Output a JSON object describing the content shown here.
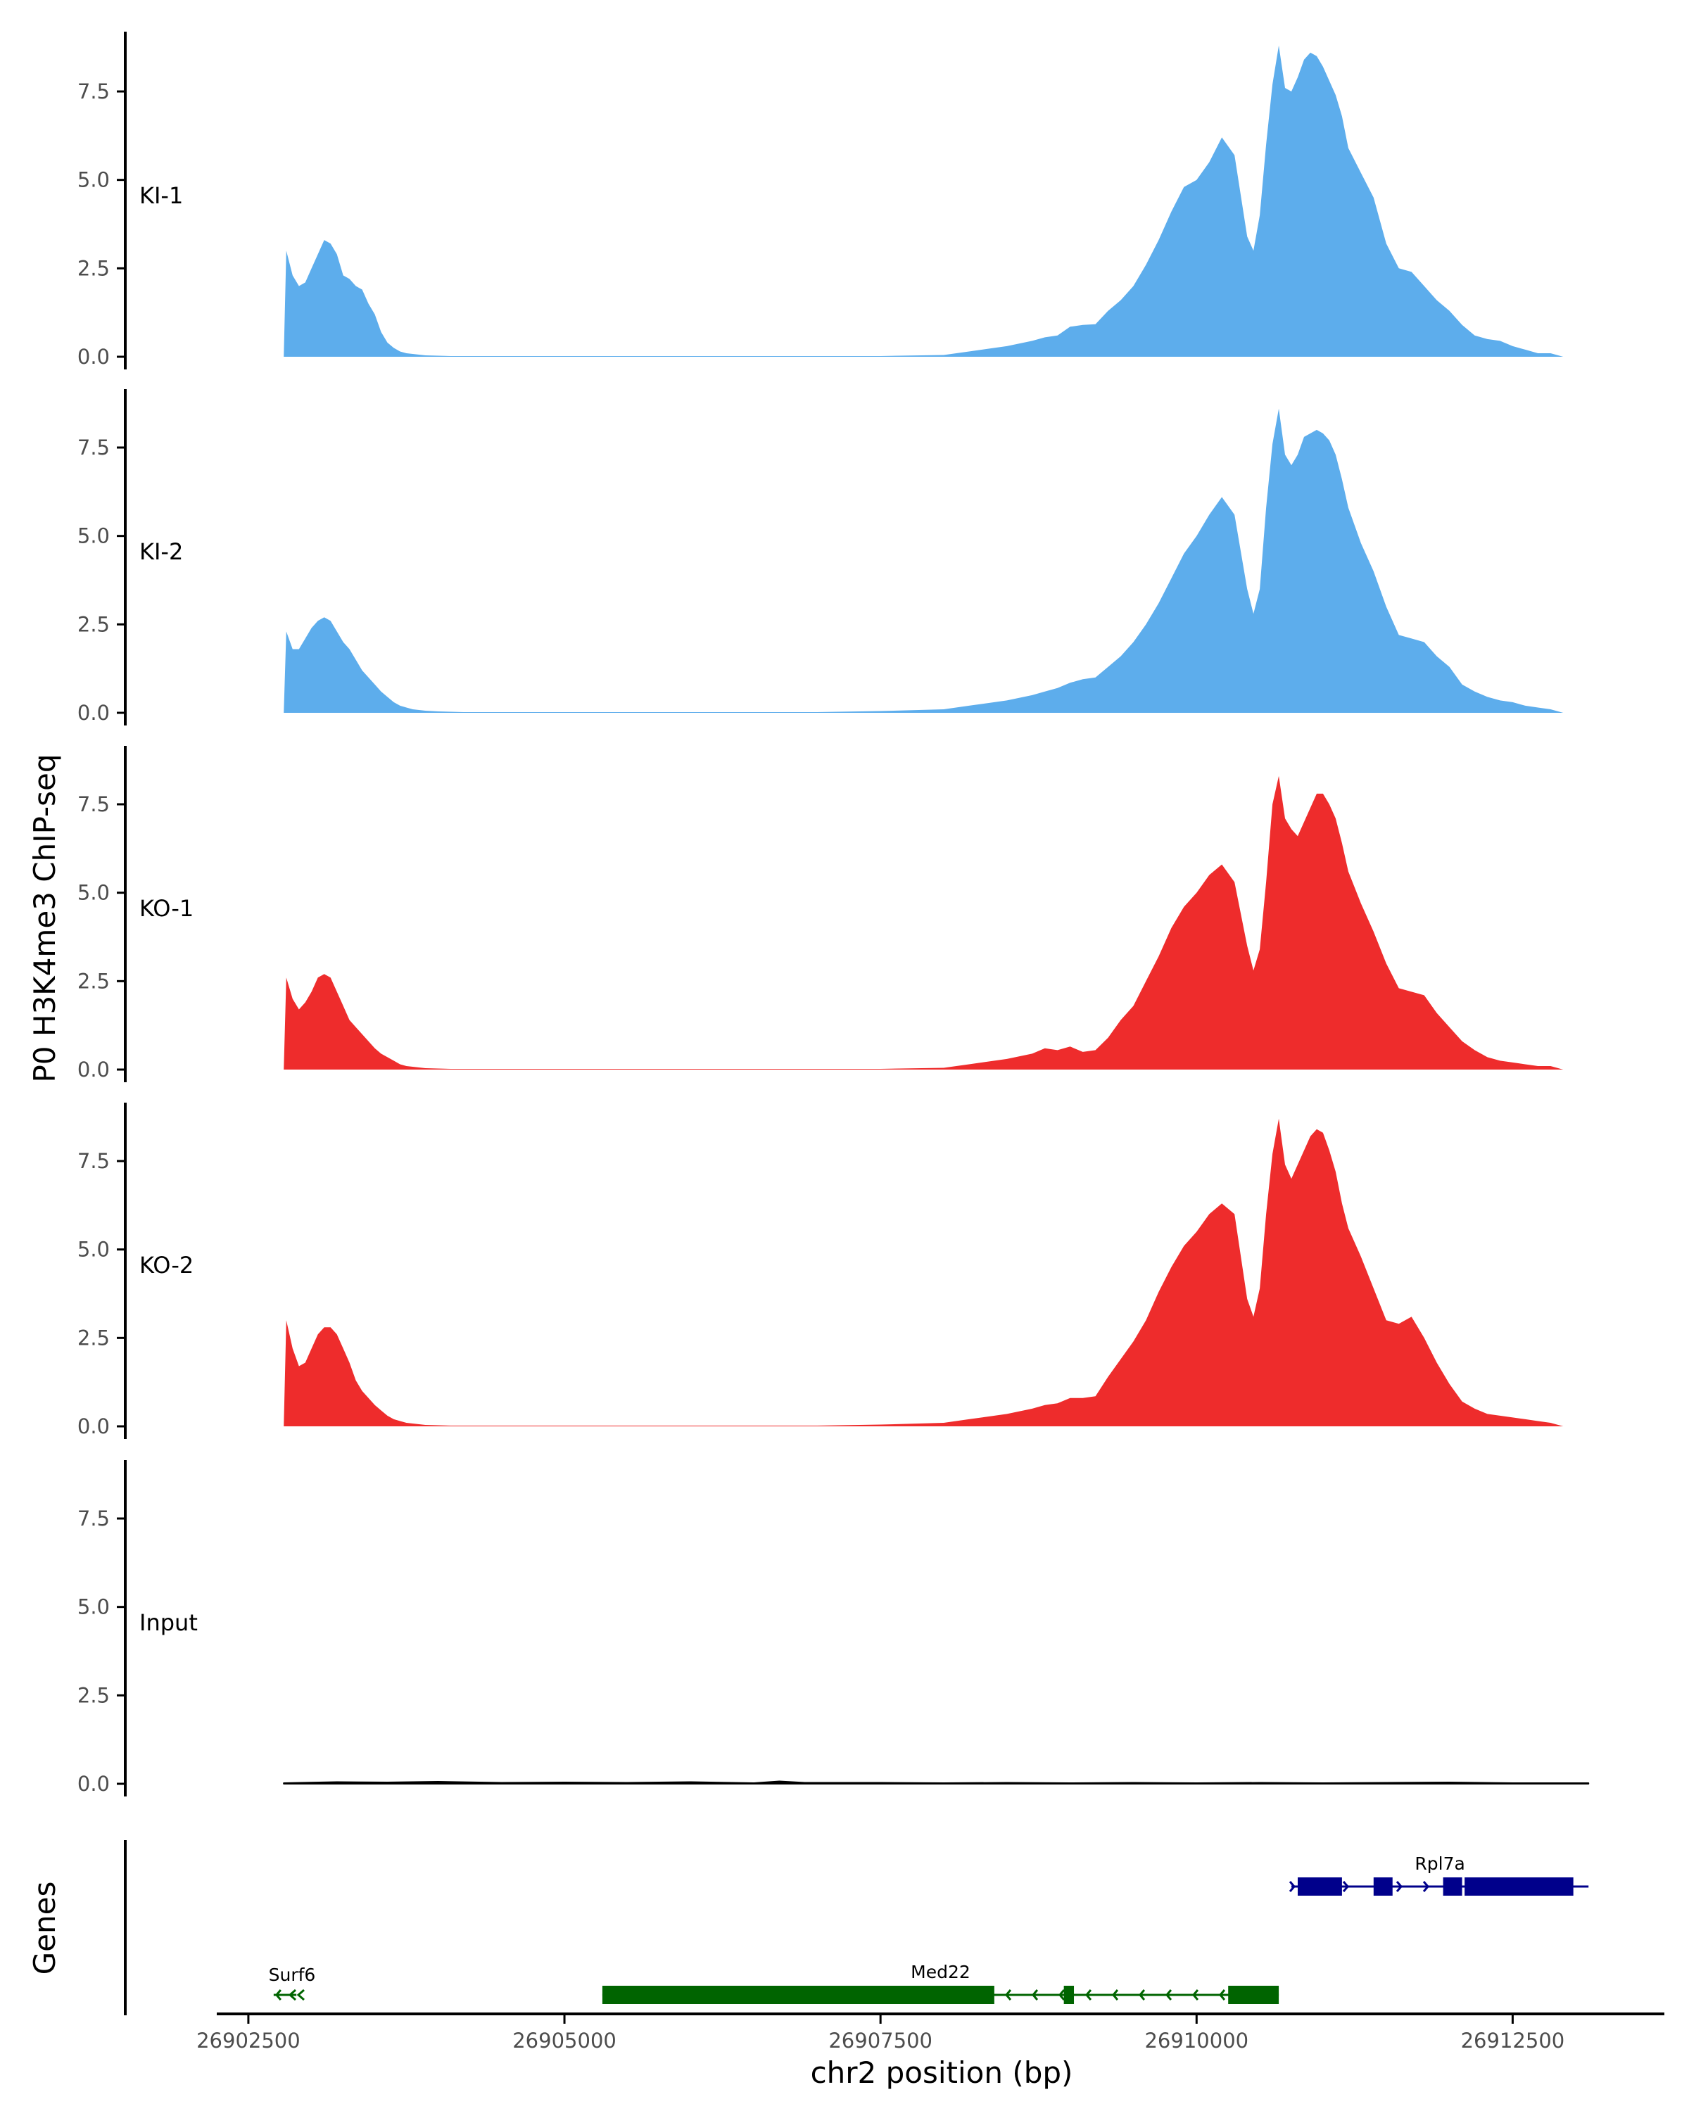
{
  "chart_data": {
    "type": "area",
    "chromosome": "chr2",
    "xlabel": "chr2 position (bp)",
    "ylabel": "P0 H3K4me3 ChIP-seq",
    "genes_label": "Genes",
    "xlim": [
      26902250,
      26913700
    ],
    "ylim": [
      0,
      9.2
    ],
    "x_ticks": [
      26902500,
      26905000,
      26907500,
      26910000,
      26912500
    ],
    "x_tick_labels": [
      "26902500",
      "26905000",
      "26907500",
      "26910000",
      "26912500"
    ],
    "y_ticks": [
      0,
      2.5,
      5,
      7.5
    ],
    "y_tick_labels": [
      "0.0",
      "2.5",
      "5.0",
      "7.5"
    ],
    "colors": {
      "KI": "#5DADEC",
      "KO": "#EE2C2C",
      "Input": "#000000",
      "plus_strand": "#00008B",
      "minus_strand": "#006400"
    },
    "series": [
      {
        "name": "KI-1",
        "color": "#5DADEC",
        "x": [
          26902780,
          26902800,
          26902850,
          26902900,
          26902950,
          26903000,
          26903050,
          26903100,
          26903150,
          26903200,
          26903250,
          26903300,
          26903350,
          26903400,
          26903450,
          26903500,
          26903550,
          26903600,
          26903650,
          26903700,
          26903750,
          26903800,
          26903850,
          26903900,
          26904000,
          26904100,
          26904200,
          26904300,
          26904500,
          26905000,
          26906000,
          26907000,
          26907500,
          26908000,
          26908200,
          26908500,
          26908700,
          26908800,
          26908900,
          26909000,
          26909100,
          26909200,
          26909300,
          26909400,
          26909500,
          26909600,
          26909700,
          26909800,
          26909900,
          26910000,
          26910100,
          26910200,
          26910300,
          26910400,
          26910450,
          26910500,
          26910550,
          26910600,
          26910650,
          26910700,
          26910750,
          26910800,
          26910850,
          26910900,
          26910950,
          26911000,
          26911050,
          26911100,
          26911150,
          26911200,
          26911300,
          26911400,
          26911500,
          26911600,
          26911700,
          26911800,
          26911900,
          26912000,
          26912100,
          26912200,
          26912300,
          26912400,
          26912500,
          26912600,
          26912700,
          26912800,
          26912900,
          26913000,
          26913100
        ],
        "values": [
          0,
          3.0,
          2.3,
          2.0,
          2.1,
          2.5,
          2.9,
          3.3,
          3.2,
          2.9,
          2.3,
          2.2,
          2.0,
          1.9,
          1.5,
          1.2,
          0.7,
          0.4,
          0.25,
          0.15,
          0.1,
          0.08,
          0.06,
          0.04,
          0.03,
          0.02,
          0.02,
          0.02,
          0.02,
          0.02,
          0.02,
          0.02,
          0.02,
          0.05,
          0.15,
          0.3,
          0.45,
          0.55,
          0.6,
          0.85,
          0.9,
          0.92,
          1.3,
          1.6,
          2.0,
          2.6,
          3.3,
          4.1,
          4.8,
          5.0,
          5.5,
          6.2,
          5.7,
          3.4,
          3.0,
          4.0,
          6.0,
          7.7,
          8.8,
          7.6,
          7.5,
          7.9,
          8.4,
          8.6,
          8.5,
          8.2,
          7.8,
          7.4,
          6.8,
          5.9,
          5.2,
          4.5,
          3.2,
          2.5,
          2.4,
          2.0,
          1.6,
          1.3,
          0.9,
          0.6,
          0.5,
          0.45,
          0.3,
          0.2,
          0.1,
          0.1,
          0,
          0,
          0
        ]
      },
      {
        "name": "KI-2",
        "color": "#5DADEC",
        "x": [
          26902780,
          26902800,
          26902850,
          26902900,
          26902950,
          26903000,
          26903050,
          26903100,
          26903150,
          26903200,
          26903250,
          26903300,
          26903350,
          26903400,
          26903450,
          26903500,
          26903550,
          26903600,
          26903650,
          26903700,
          26903750,
          26903800,
          26903850,
          26903900,
          26904000,
          26904100,
          26904200,
          26904300,
          26904500,
          26905000,
          26906000,
          26907000,
          26907500,
          26908000,
          26908200,
          26908500,
          26908700,
          26908800,
          26908900,
          26909000,
          26909100,
          26909200,
          26909300,
          26909400,
          26909500,
          26909600,
          26909700,
          26909800,
          26909900,
          26910000,
          26910100,
          26910200,
          26910300,
          26910400,
          26910450,
          26910500,
          26910550,
          26910600,
          26910650,
          26910700,
          26910750,
          26910800,
          26910850,
          26910900,
          26910950,
          26911000,
          26911050,
          26911100,
          26911150,
          26911200,
          26911300,
          26911400,
          26911500,
          26911600,
          26911700,
          26911800,
          26911900,
          26912000,
          26912100,
          26912200,
          26912300,
          26912400,
          26912500,
          26912600,
          26912700,
          26912800,
          26912900,
          26913000,
          26913100
        ],
        "values": [
          0,
          2.3,
          1.8,
          1.8,
          2.1,
          2.4,
          2.6,
          2.7,
          2.6,
          2.3,
          2.0,
          1.8,
          1.5,
          1.2,
          1.0,
          0.8,
          0.6,
          0.45,
          0.3,
          0.2,
          0.15,
          0.1,
          0.08,
          0.06,
          0.04,
          0.03,
          0.02,
          0.02,
          0.02,
          0.02,
          0.02,
          0.02,
          0.05,
          0.1,
          0.2,
          0.35,
          0.5,
          0.6,
          0.7,
          0.85,
          0.95,
          1.0,
          1.3,
          1.6,
          2.0,
          2.5,
          3.1,
          3.8,
          4.5,
          5.0,
          5.6,
          6.1,
          5.6,
          3.5,
          2.8,
          3.5,
          5.8,
          7.6,
          8.6,
          7.3,
          7.0,
          7.3,
          7.8,
          7.9,
          8.0,
          7.9,
          7.7,
          7.3,
          6.6,
          5.8,
          4.8,
          4.0,
          3.0,
          2.2,
          2.1,
          2.0,
          1.6,
          1.3,
          0.8,
          0.6,
          0.45,
          0.35,
          0.3,
          0.2,
          0.15,
          0.1,
          0,
          0,
          0
        ]
      },
      {
        "name": "KO-1",
        "color": "#EE2C2C",
        "x": [
          26902780,
          26902800,
          26902850,
          26902900,
          26902950,
          26903000,
          26903050,
          26903100,
          26903150,
          26903200,
          26903250,
          26903300,
          26903350,
          26903400,
          26903450,
          26903500,
          26903550,
          26903600,
          26903650,
          26903700,
          26903750,
          26903800,
          26903850,
          26903900,
          26904000,
          26904100,
          26904200,
          26904300,
          26904500,
          26905000,
          26906000,
          26907000,
          26907500,
          26908000,
          26908200,
          26908500,
          26908700,
          26908800,
          26908900,
          26909000,
          26909100,
          26909200,
          26909300,
          26909400,
          26909500,
          26909600,
          26909700,
          26909800,
          26909900,
          26910000,
          26910100,
          26910200,
          26910300,
          26910400,
          26910450,
          26910500,
          26910550,
          26910600,
          26910650,
          26910700,
          26910750,
          26910800,
          26910850,
          26910900,
          26910950,
          26911000,
          26911050,
          26911100,
          26911150,
          26911200,
          26911300,
          26911400,
          26911500,
          26911600,
          26911700,
          26911800,
          26911900,
          26912000,
          26912100,
          26912200,
          26912300,
          26912400,
          26912500,
          26912600,
          26912700,
          26912800,
          26912900,
          26913000,
          26913100
        ],
        "values": [
          0,
          2.6,
          2.0,
          1.7,
          1.9,
          2.2,
          2.6,
          2.7,
          2.6,
          2.2,
          1.8,
          1.4,
          1.2,
          1.0,
          0.8,
          0.6,
          0.45,
          0.35,
          0.25,
          0.15,
          0.1,
          0.08,
          0.06,
          0.04,
          0.03,
          0.02,
          0.02,
          0.02,
          0.02,
          0.02,
          0.02,
          0.02,
          0.02,
          0.05,
          0.15,
          0.3,
          0.45,
          0.6,
          0.55,
          0.65,
          0.5,
          0.55,
          0.9,
          1.4,
          1.8,
          2.5,
          3.2,
          4.0,
          4.6,
          5.0,
          5.5,
          5.8,
          5.3,
          3.5,
          2.8,
          3.4,
          5.3,
          7.5,
          8.3,
          7.1,
          6.8,
          6.6,
          7.0,
          7.4,
          7.8,
          7.8,
          7.5,
          7.1,
          6.4,
          5.6,
          4.7,
          3.9,
          3.0,
          2.3,
          2.2,
          2.1,
          1.6,
          1.2,
          0.8,
          0.55,
          0.35,
          0.25,
          0.2,
          0.15,
          0.1,
          0.1,
          0,
          0,
          0
        ]
      },
      {
        "name": "KO-2",
        "color": "#EE2C2C",
        "x": [
          26902780,
          26902800,
          26902850,
          26902900,
          26902950,
          26903000,
          26903050,
          26903100,
          26903150,
          26903200,
          26903250,
          26903300,
          26903350,
          26903400,
          26903450,
          26903500,
          26903550,
          26903600,
          26903650,
          26903700,
          26903750,
          26903800,
          26903850,
          26903900,
          26904000,
          26904100,
          26904200,
          26904300,
          26904500,
          26905000,
          26906000,
          26907000,
          26907500,
          26908000,
          26908200,
          26908500,
          26908700,
          26908800,
          26908900,
          26909000,
          26909100,
          26909200,
          26909300,
          26909400,
          26909500,
          26909600,
          26909700,
          26909800,
          26909900,
          26910000,
          26910100,
          26910200,
          26910300,
          26910400,
          26910450,
          26910500,
          26910550,
          26910600,
          26910650,
          26910700,
          26910750,
          26910800,
          26910850,
          26910900,
          26910950,
          26911000,
          26911050,
          26911100,
          26911150,
          26911200,
          26911300,
          26911400,
          26911500,
          26911600,
          26911700,
          26911800,
          26911900,
          26912000,
          26912100,
          26912200,
          26912300,
          26912400,
          26912500,
          26912600,
          26912700,
          26912800,
          26912900,
          26913000,
          26913100
        ],
        "values": [
          0,
          3.0,
          2.2,
          1.7,
          1.8,
          2.2,
          2.6,
          2.8,
          2.8,
          2.6,
          2.2,
          1.8,
          1.3,
          1.0,
          0.8,
          0.6,
          0.45,
          0.3,
          0.2,
          0.15,
          0.1,
          0.08,
          0.06,
          0.04,
          0.03,
          0.02,
          0.02,
          0.02,
          0.02,
          0.02,
          0.02,
          0.02,
          0.05,
          0.1,
          0.2,
          0.35,
          0.5,
          0.6,
          0.65,
          0.8,
          0.8,
          0.85,
          1.4,
          1.9,
          2.4,
          3.0,
          3.8,
          4.5,
          5.1,
          5.5,
          6.0,
          6.3,
          6.0,
          3.6,
          3.1,
          3.9,
          6.0,
          7.7,
          8.7,
          7.4,
          7.0,
          7.4,
          7.8,
          8.2,
          8.4,
          8.3,
          7.8,
          7.2,
          6.3,
          5.6,
          4.8,
          3.9,
          3.0,
          2.9,
          3.1,
          2.5,
          1.8,
          1.2,
          0.7,
          0.5,
          0.35,
          0.3,
          0.25,
          0.2,
          0.15,
          0.1,
          0,
          0,
          0
        ]
      },
      {
        "name": "Input",
        "color": "#000000",
        "x": [
          26902780,
          26903200,
          26903600,
          26904000,
          26904500,
          26905000,
          26905500,
          26906000,
          26906500,
          26906700,
          26906900,
          26907500,
          26908000,
          26908500,
          26909000,
          26909500,
          26910000,
          26910500,
          26911000,
          26911500,
          26912000,
          26912500,
          26913100
        ],
        "values": [
          0.02,
          0.05,
          0.04,
          0.06,
          0.03,
          0.04,
          0.03,
          0.05,
          0.02,
          0.07,
          0.03,
          0.03,
          0.02,
          0.03,
          0.02,
          0.03,
          0.02,
          0.03,
          0.02,
          0.03,
          0.04,
          0.02,
          0.02
        ]
      }
    ],
    "genes": [
      {
        "name": "Rpl7a",
        "strand": "+",
        "start": 26910750,
        "end": 26913100,
        "exons": [
          [
            26910800,
            26911150
          ],
          [
            26911400,
            26911550
          ],
          [
            26911950,
            26912100
          ],
          [
            26912120,
            26912980
          ]
        ]
      },
      {
        "name": "Med22",
        "strand": "-",
        "start": 26905300,
        "end": 26910650,
        "exons": [
          [
            26905300,
            26908400
          ],
          [
            26908950,
            26909030
          ],
          [
            26910250,
            26910650
          ]
        ]
      },
      {
        "name": "Surf6",
        "strand": "-",
        "start": 26902700,
        "end": 26902880,
        "exons": []
      }
    ]
  }
}
